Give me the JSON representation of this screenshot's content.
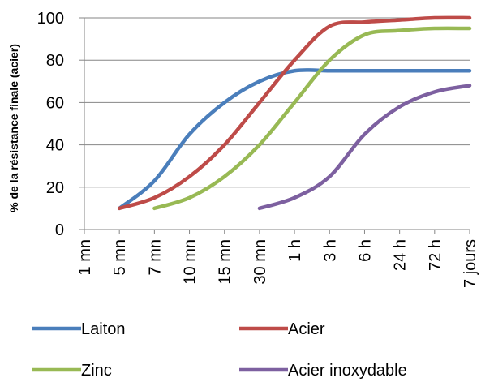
{
  "chart_data": {
    "type": "line",
    "title": "",
    "xlabel": "",
    "ylabel": "% de la résistance finale (acier)",
    "categories": [
      "1 mn",
      "5 mn",
      "7 mn",
      "10 mn",
      "15 mn",
      "30 mn",
      "1 h",
      "3 h",
      "6 h",
      "24 h",
      "72 h",
      "7 jours"
    ],
    "ylim": [
      0,
      100
    ],
    "yticks": [
      0,
      20,
      40,
      60,
      80,
      100
    ],
    "grid": "horizontal",
    "legend_position": "bottom",
    "series": [
      {
        "name": "Laiton",
        "color": "#4a7ebb",
        "values": [
          null,
          10,
          23,
          45,
          60,
          70,
          75,
          75,
          75,
          75,
          75,
          75
        ]
      },
      {
        "name": "Acier",
        "color": "#be4b48",
        "values": [
          null,
          10,
          15,
          25,
          40,
          60,
          80,
          96,
          98,
          99,
          100,
          100
        ]
      },
      {
        "name": "Zinc",
        "color": "#98b954",
        "values": [
          null,
          null,
          10,
          15,
          25,
          40,
          60,
          80,
          92,
          94,
          95,
          95
        ]
      },
      {
        "name": "Acier inoxydable",
        "color": "#7d60a0",
        "values": [
          null,
          null,
          null,
          null,
          null,
          10,
          15,
          25,
          45,
          58,
          65,
          68
        ]
      }
    ]
  }
}
